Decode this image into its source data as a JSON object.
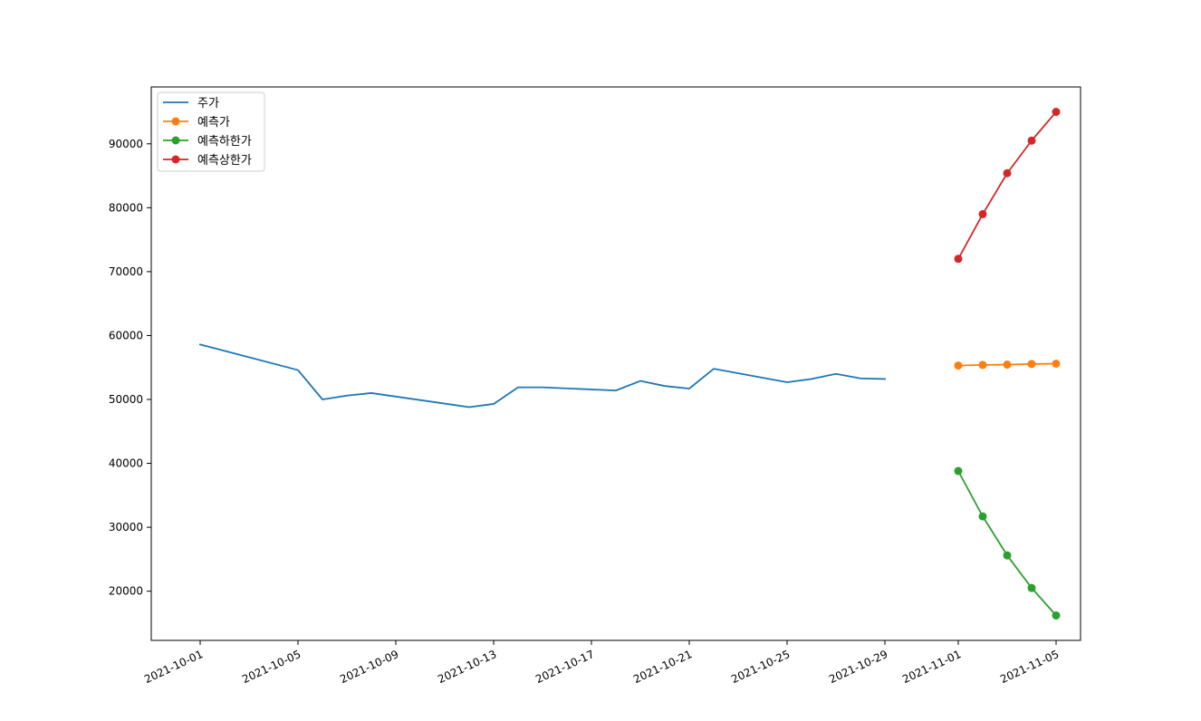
{
  "chart_data": {
    "type": "line",
    "title": "",
    "xlabel": "",
    "ylabel": "",
    "x_ticks": [
      "2021-10-01",
      "2021-10-05",
      "2021-10-09",
      "2021-10-13",
      "2021-10-17",
      "2021-10-21",
      "2021-10-25",
      "2021-10-29",
      "2021-11-01",
      "2021-11-05"
    ],
    "y_ticks": [
      20000,
      30000,
      40000,
      50000,
      60000,
      70000,
      80000,
      90000
    ],
    "xlim": [
      "2021-09-29",
      "2021-11-06"
    ],
    "ylim": [
      12300,
      98900
    ],
    "grid": false,
    "legend_position": "top-left",
    "series": [
      {
        "name": "주가",
        "color": "#1f77b4",
        "marker": false,
        "x": [
          "2021-10-01",
          "2021-10-05",
          "2021-10-06",
          "2021-10-07",
          "2021-10-08",
          "2021-10-12",
          "2021-10-13",
          "2021-10-14",
          "2021-10-15",
          "2021-10-18",
          "2021-10-19",
          "2021-10-20",
          "2021-10-21",
          "2021-10-22",
          "2021-10-25",
          "2021-10-26",
          "2021-10-27",
          "2021-10-28",
          "2021-10-29"
        ],
        "y": [
          58600,
          54600,
          50000,
          50600,
          51000,
          48800,
          49300,
          51900,
          51900,
          51400,
          52900,
          52100,
          51700,
          54800,
          52700,
          53200,
          54000,
          53300,
          53200
        ]
      },
      {
        "name": "예측가",
        "color": "#ff7f0e",
        "marker": true,
        "x": [
          "2021-11-01",
          "2021-11-02",
          "2021-11-03",
          "2021-11-04",
          "2021-11-05"
        ],
        "y": [
          55300,
          55400,
          55450,
          55550,
          55600
        ]
      },
      {
        "name": "예측하한가",
        "color": "#2ca02c",
        "marker": true,
        "x": [
          "2021-11-01",
          "2021-11-02",
          "2021-11-03",
          "2021-11-04",
          "2021-11-05"
        ],
        "y": [
          38800,
          31700,
          25600,
          20500,
          16200
        ]
      },
      {
        "name": "예측상한가",
        "color": "#d62728",
        "marker": true,
        "x": [
          "2021-11-01",
          "2021-11-02",
          "2021-11-03",
          "2021-11-04",
          "2021-11-05"
        ],
        "y": [
          72000,
          79000,
          85400,
          90500,
          95000
        ]
      }
    ]
  }
}
